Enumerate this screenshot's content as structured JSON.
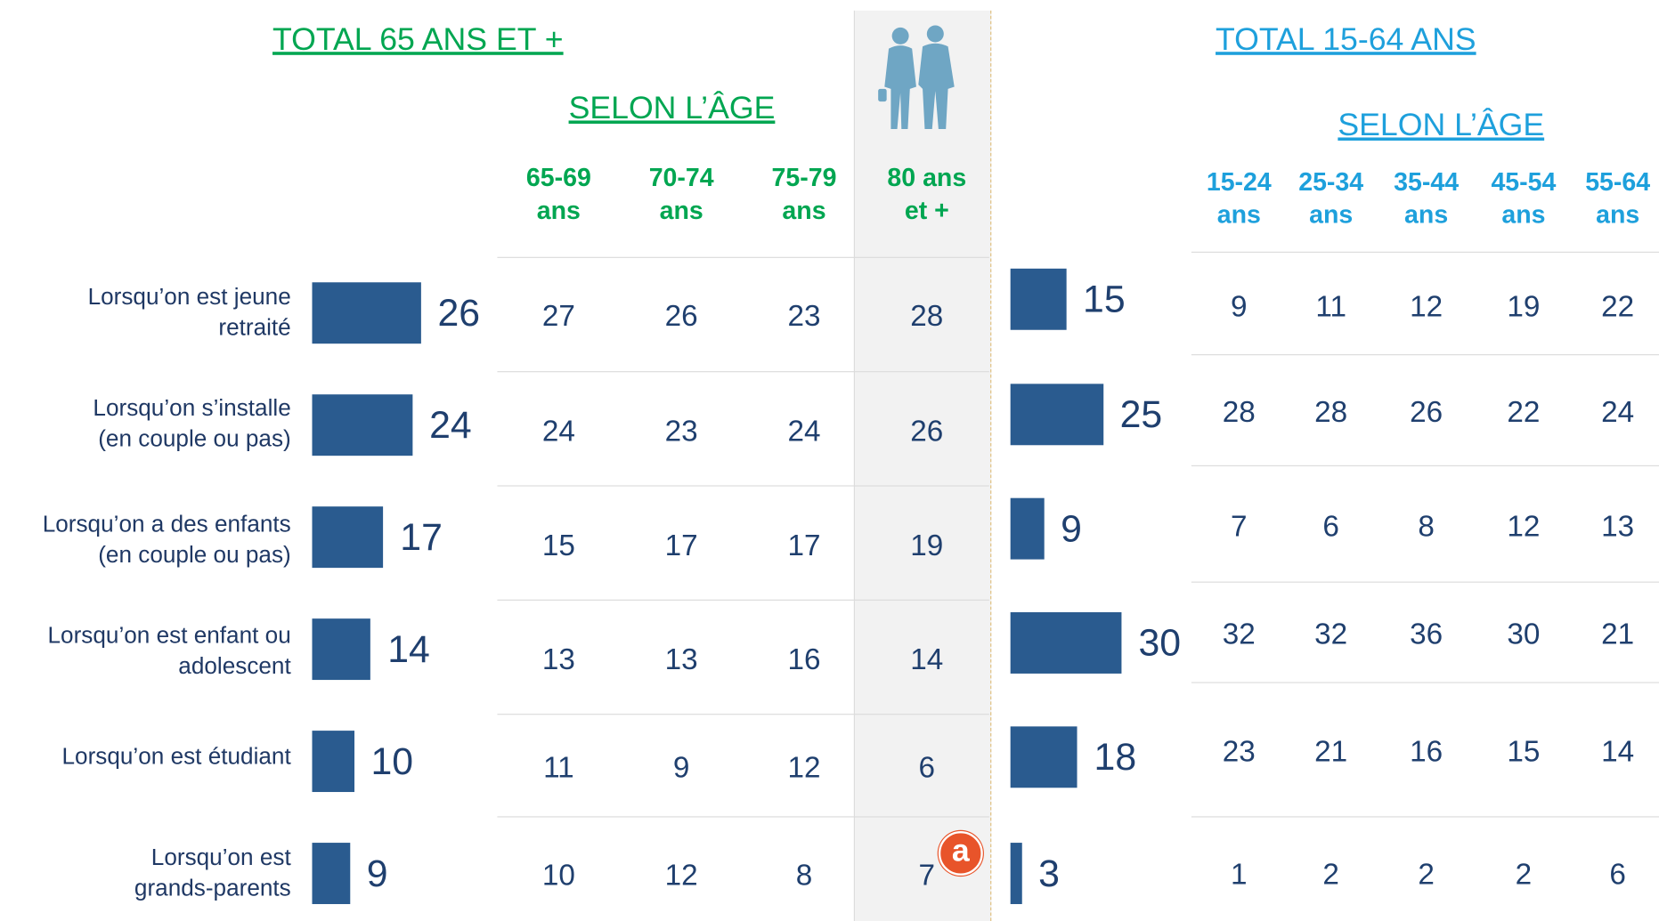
{
  "rows": [
    [
      "Lorsqu’on est jeune",
      "retraité"
    ],
    [
      "Lorsqu’on s’installe",
      "(en couple ou pas)"
    ],
    [
      "Lorsqu’on a des enfants",
      "(en couple ou pas)"
    ],
    [
      "Lorsqu’on est enfant ou",
      "adolescent"
    ],
    [
      "Lorsqu’on est étudiant"
    ],
    [
      "Lorsqu’on est",
      "grands-parents"
    ]
  ],
  "left": {
    "title": "TOTAL 65 ANS ET +",
    "subtitle": "SELON L’ÂGE",
    "header_color": "#00a651",
    "bar_color": "#2a5b8f",
    "columns": [
      [
        "65-69",
        "ans"
      ],
      [
        "70-74",
        "ans"
      ],
      [
        "75-79",
        "ans"
      ],
      [
        "80 ans",
        "et +"
      ]
    ],
    "totals": [
      26,
      24,
      17,
      14,
      10,
      9
    ],
    "table": [
      [
        27,
        26,
        23,
        28
      ],
      [
        24,
        23,
        24,
        26
      ],
      [
        15,
        17,
        17,
        19
      ],
      [
        13,
        13,
        16,
        14
      ],
      [
        11,
        9,
        12,
        6
      ],
      [
        10,
        12,
        8,
        7
      ]
    ]
  },
  "right": {
    "title": "TOTAL 15-64 ANS",
    "subtitle": "SELON L’ÂGE",
    "header_color": "#1ea0dc",
    "bar_color": "#2a5b8f",
    "columns": [
      [
        "15-24",
        "ans"
      ],
      [
        "25-34",
        "ans"
      ],
      [
        "35-44",
        "ans"
      ],
      [
        "45-54",
        "ans"
      ],
      [
        "55-64",
        "ans"
      ]
    ],
    "totals": [
      15,
      25,
      9,
      30,
      18,
      3
    ],
    "table": [
      [
        9,
        11,
        12,
        19,
        22
      ],
      [
        28,
        28,
        26,
        22,
        24
      ],
      [
        7,
        6,
        8,
        12,
        13
      ],
      [
        32,
        32,
        36,
        30,
        21
      ],
      [
        23,
        21,
        16,
        15,
        14
      ],
      [
        1,
        2,
        2,
        2,
        6
      ]
    ]
  },
  "badge": "a"
}
